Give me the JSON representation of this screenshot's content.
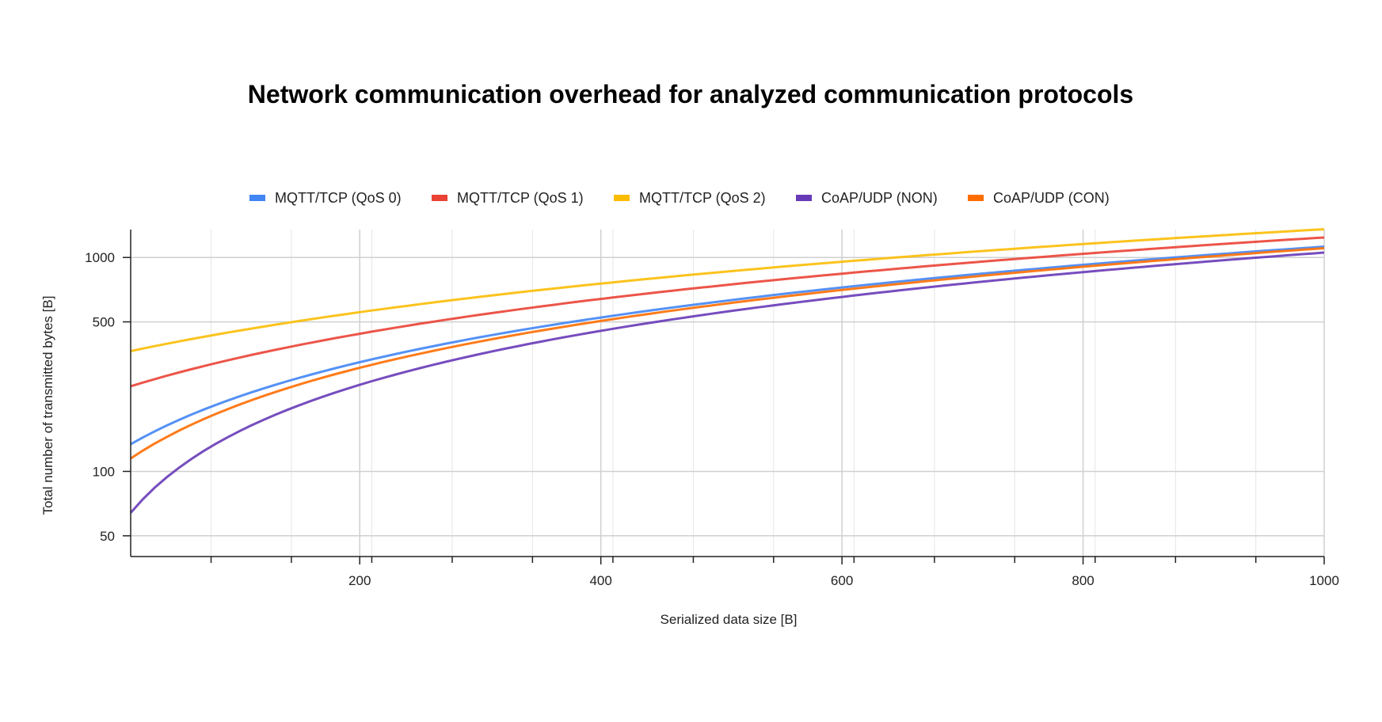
{
  "chart_data": {
    "type": "line",
    "title": "Network communication overhead for analyzed communication protocols",
    "xlabel": "Serialized data size [B]",
    "ylabel": "Total number of transmitted bytes [B]",
    "xlim": [
      10,
      1000
    ],
    "ylim": [
      40,
      1350
    ],
    "yscale": "log",
    "grid": true,
    "legend": "top",
    "x_ticks": [
      "200",
      "400",
      "600",
      "800",
      "1000"
    ],
    "x_tick_values": [
      200,
      400,
      600,
      800,
      1000
    ],
    "y_ticks": [
      "50",
      "100",
      "500",
      "1000"
    ],
    "y_tick_values": [
      50,
      100,
      500,
      1000
    ],
    "x": [
      10,
      100,
      200,
      300,
      400,
      500,
      600,
      700,
      800,
      900,
      1000
    ],
    "series": [
      {
        "name": "MQTT/TCP (QoS 0)",
        "color": "#4285F4",
        "values": [
          134,
          224,
          324,
          424,
          524,
          624,
          724,
          824,
          924,
          1024,
          1124
        ]
      },
      {
        "name": "MQTT/TCP (QoS 1)",
        "color": "#EA4335",
        "values": [
          250,
          340,
          440,
          540,
          640,
          740,
          840,
          940,
          1040,
          1140,
          1240
        ]
      },
      {
        "name": "MQTT/TCP (QoS 2)",
        "color": "#FBBC04",
        "values": [
          365,
          455,
          555,
          655,
          755,
          855,
          955,
          1055,
          1155,
          1255,
          1355
        ]
      },
      {
        "name": "CoAP/UDP (NON)",
        "color": "#673AB7",
        "values": [
          64,
          154,
          254,
          354,
          454,
          554,
          654,
          754,
          854,
          954,
          1054
        ]
      },
      {
        "name": "CoAP/UDP (CON)",
        "color": "#FF6D01",
        "values": [
          115,
          205,
          305,
          405,
          505,
          605,
          705,
          805,
          905,
          1005,
          1105
        ]
      }
    ]
  }
}
